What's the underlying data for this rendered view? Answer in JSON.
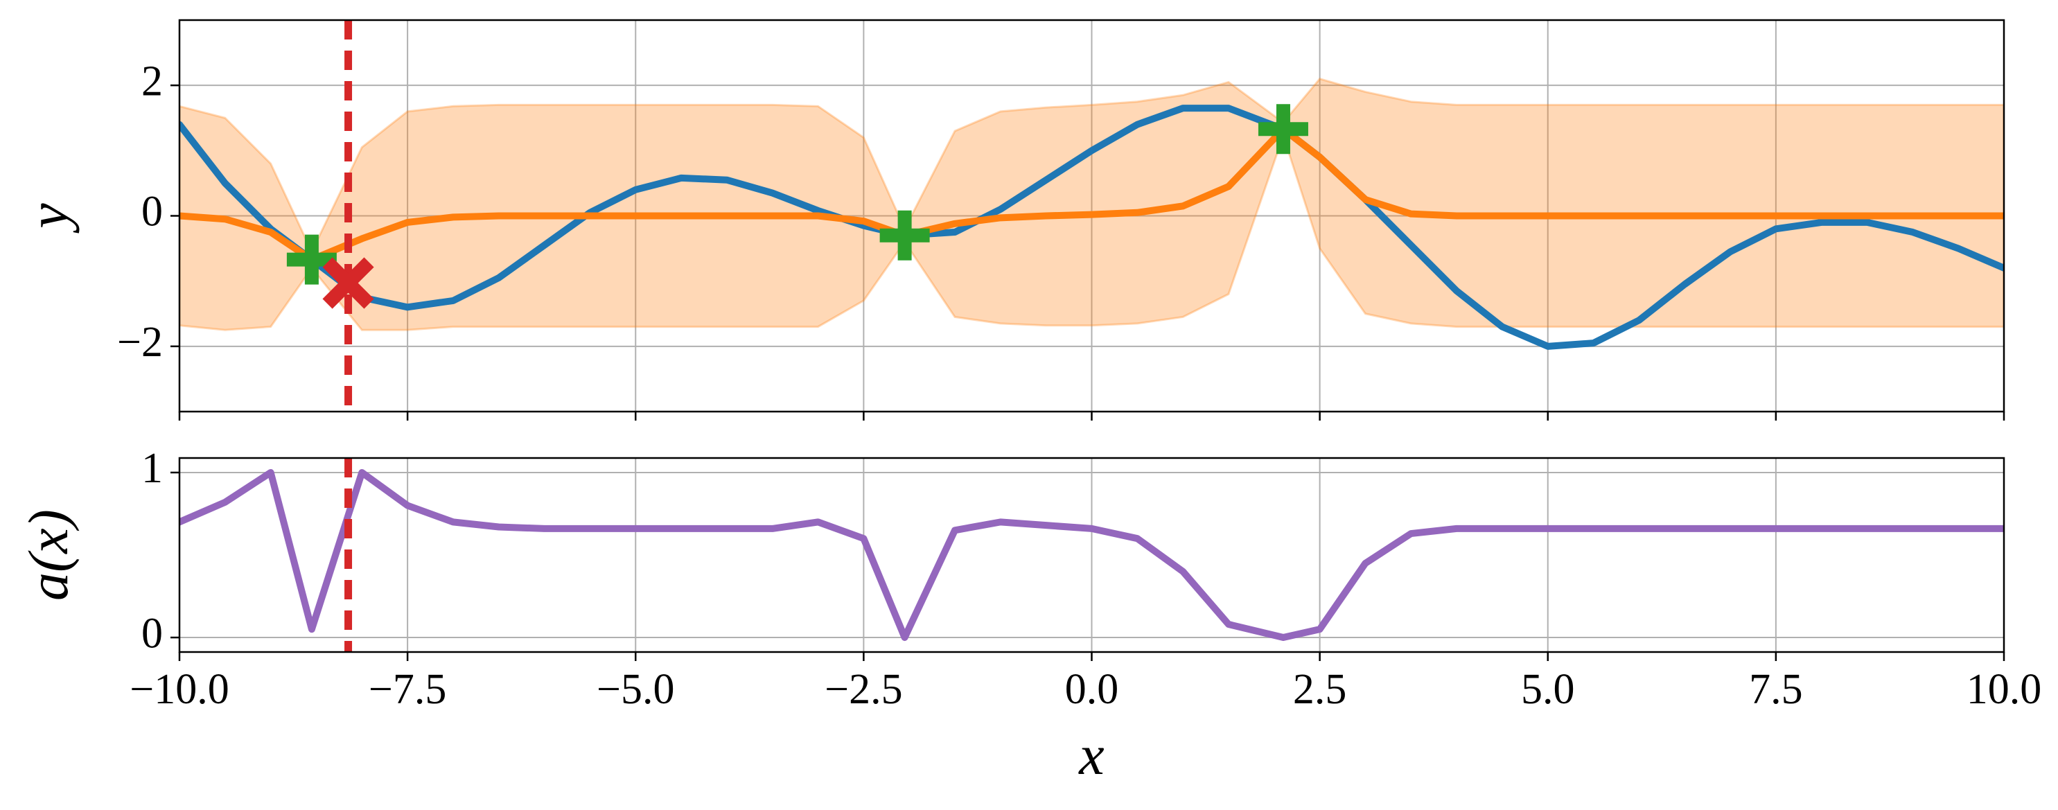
{
  "chart_data": [
    {
      "type": "line",
      "ylabel": "y",
      "xlim": [
        -10,
        10
      ],
      "ylim": [
        -3,
        3
      ],
      "xticks": [
        -10,
        -7.5,
        -5,
        -2.5,
        0,
        2.5,
        5,
        7.5,
        10
      ],
      "yticks": [
        {
          "value": -2,
          "label": "−2"
        },
        0,
        2
      ],
      "grid": true,
      "x": [
        -10,
        -9.5,
        -9,
        -8.55,
        -8,
        -7.5,
        -7,
        -6.5,
        -6,
        -5.5,
        -5,
        -4.5,
        -4,
        -3.5,
        -3,
        -2.5,
        -2.05,
        -1.5,
        -1,
        -0.5,
        0,
        0.5,
        1,
        1.5,
        2.1,
        2.5,
        3,
        3.5,
        4,
        4.5,
        5,
        5.5,
        6,
        6.5,
        7,
        7.5,
        8,
        8.5,
        9,
        9.5,
        10
      ],
      "band": {
        "color": "#ff7f0e",
        "alpha": 0.3,
        "upper": [
          1.68,
          1.5,
          0.8,
          -0.55,
          1.05,
          1.6,
          1.68,
          1.7,
          1.7,
          1.7,
          1.7,
          1.7,
          1.7,
          1.7,
          1.68,
          1.2,
          -0.2,
          1.3,
          1.6,
          1.66,
          1.7,
          1.75,
          1.85,
          2.05,
          1.43,
          2.1,
          1.9,
          1.75,
          1.7,
          1.7,
          1.7,
          1.7,
          1.7,
          1.7,
          1.7,
          1.7,
          1.7,
          1.7,
          1.7,
          1.7,
          1.7
        ],
        "lower": [
          -1.68,
          -1.75,
          -1.7,
          -0.8,
          -1.75,
          -1.75,
          -1.7,
          -1.7,
          -1.7,
          -1.7,
          -1.7,
          -1.7,
          -1.7,
          -1.7,
          -1.7,
          -1.3,
          -0.4,
          -1.55,
          -1.65,
          -1.68,
          -1.68,
          -1.65,
          -1.55,
          -1.2,
          1.23,
          -0.5,
          -1.5,
          -1.65,
          -1.7,
          -1.7,
          -1.7,
          -1.7,
          -1.7,
          -1.7,
          -1.7,
          -1.7,
          -1.7,
          -1.7,
          -1.7,
          -1.7,
          -1.7
        ]
      },
      "series": [
        {
          "color": "#1f77b4",
          "values": [
            1.4,
            0.5,
            -0.2,
            -0.67,
            -1.25,
            -1.4,
            -1.3,
            -0.95,
            -0.45,
            0.05,
            0.4,
            0.58,
            0.55,
            0.35,
            0.08,
            -0.15,
            -0.3,
            -0.25,
            0.1,
            0.55,
            1.0,
            1.4,
            1.65,
            1.65,
            1.33,
            0.9,
            0.25,
            -0.45,
            -1.15,
            -1.7,
            -2.0,
            -1.95,
            -1.6,
            -1.05,
            -0.55,
            -0.2,
            -0.1,
            -0.1,
            -0.25,
            -0.5,
            -0.8
          ]
        },
        {
          "color": "#ff7f0e",
          "values": [
            0,
            -0.05,
            -0.25,
            -0.67,
            -0.35,
            -0.1,
            -0.02,
            0,
            0,
            0,
            0,
            0,
            0,
            0,
            0,
            -0.08,
            -0.3,
            -0.12,
            -0.03,
            0,
            0.02,
            0.05,
            0.15,
            0.45,
            1.33,
            0.9,
            0.25,
            0.03,
            0,
            0,
            0,
            0,
            0,
            0,
            0,
            0,
            0,
            0,
            0,
            0,
            0
          ]
        }
      ],
      "points": {
        "color": "#2ca02c",
        "marker": "plus",
        "x": [
          -8.55,
          -2.05,
          2.1
        ],
        "y": [
          -0.67,
          -0.3,
          1.33
        ]
      },
      "query": {
        "color": "#d62728",
        "marker": "x",
        "x": -8.15,
        "y": -1.03
      },
      "vline": {
        "color": "#d62728",
        "x": -8.15
      }
    },
    {
      "type": "line",
      "ylabel": "a(x)",
      "xlabel": "x",
      "xlim": [
        -10,
        10
      ],
      "ylim": [
        -0.088,
        1.088
      ],
      "xticks": [
        {
          "value": -10,
          "label": "−10.0"
        },
        {
          "value": -7.5,
          "label": "−7.5"
        },
        {
          "value": -5,
          "label": "−5.0"
        },
        {
          "value": -2.5,
          "label": "−2.5"
        },
        {
          "value": 0,
          "label": "0.0"
        },
        {
          "value": 2.5,
          "label": "2.5"
        },
        {
          "value": 5,
          "label": "5.0"
        },
        {
          "value": 7.5,
          "label": "7.5"
        },
        {
          "value": 10,
          "label": "10.0"
        }
      ],
      "yticks": [
        0,
        1
      ],
      "grid": true,
      "x": [
        -10,
        -9.5,
        -9,
        -8.55,
        -8,
        -7.5,
        -7,
        -6.5,
        -6,
        -5.5,
        -5,
        -4.5,
        -4,
        -3.5,
        -3,
        -2.5,
        -2.05,
        -1.5,
        -1,
        -0.5,
        0,
        0.5,
        1,
        1.5,
        2.1,
        2.5,
        3,
        3.5,
        4,
        4.5,
        5,
        5.5,
        6,
        6.5,
        7,
        7.5,
        8,
        8.5,
        9,
        9.5,
        10
      ],
      "series": [
        {
          "color": "#9467bd",
          "values": [
            0.7,
            0.82,
            1.0,
            0.05,
            1.0,
            0.8,
            0.7,
            0.67,
            0.66,
            0.66,
            0.66,
            0.66,
            0.66,
            0.66,
            0.7,
            0.6,
            0.0,
            0.65,
            0.7,
            0.68,
            0.66,
            0.6,
            0.4,
            0.08,
            0.0,
            0.05,
            0.45,
            0.63,
            0.66,
            0.66,
            0.66,
            0.66,
            0.66,
            0.66,
            0.66,
            0.66,
            0.66,
            0.66,
            0.66,
            0.66,
            0.66
          ]
        }
      ],
      "vline": {
        "color": "#d62728",
        "x": -8.15
      }
    }
  ]
}
